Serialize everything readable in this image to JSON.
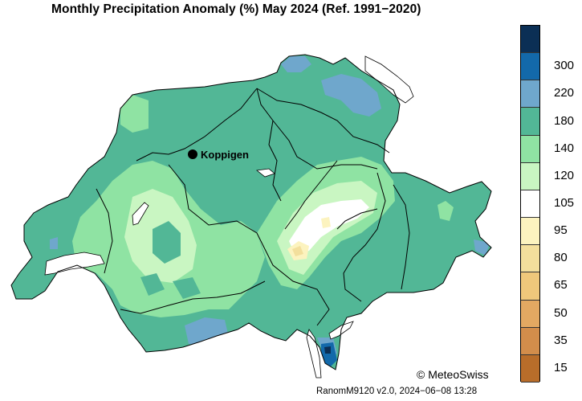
{
  "title": "Monthly Precipitation Anomaly (%) May 2024  (Ref. 1991−2020)",
  "station": {
    "name": "Koppigen"
  },
  "legend": {
    "classes": [
      {
        "color": "#0b2f55",
        "label": ""
      },
      {
        "color": "#1369aa",
        "label": "300"
      },
      {
        "color": "#6fa7cc",
        "label": "220"
      },
      {
        "color": "#52b796",
        "label": "180"
      },
      {
        "color": "#8fe3a3",
        "label": "140"
      },
      {
        "color": "#c9f6c2",
        "label": "120"
      },
      {
        "color": "#ffffff",
        "label": "105"
      },
      {
        "color": "#fcf3bf",
        "label": "95"
      },
      {
        "color": "#f3df9c",
        "label": "80"
      },
      {
        "color": "#efc87b",
        "label": "65"
      },
      {
        "color": "#e3a862",
        "label": "50"
      },
      {
        "color": "#d28d4b",
        "label": "35"
      },
      {
        "color": "#b86d2a",
        "label": "15"
      }
    ]
  },
  "copyright": "© MeteoSwiss",
  "footer": "RanomM9120 v2.0, 2024−06−08 13:28"
}
